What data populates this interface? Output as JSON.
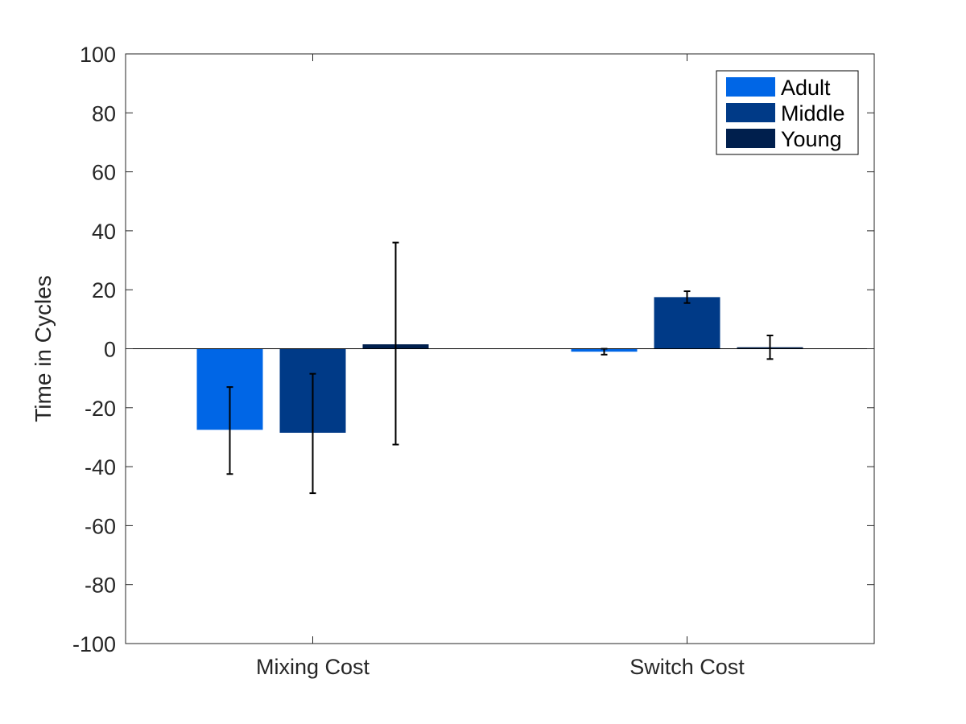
{
  "chart_data": {
    "type": "bar",
    "title": "",
    "xlabel": "",
    "ylabel": "Time in Cycles",
    "categories": [
      "Mixing Cost",
      "Switch Cost"
    ],
    "ylim": [
      -100,
      100
    ],
    "yticks": [
      -100,
      -80,
      -60,
      -40,
      -20,
      0,
      20,
      40,
      60,
      80,
      100
    ],
    "grid": false,
    "legend_position": "top-right",
    "series": [
      {
        "name": "Adult",
        "color": "#0066e6",
        "values": [
          -27.5,
          -1
        ],
        "error_low": [
          -42.5,
          -2
        ],
        "error_high": [
          -13,
          0
        ]
      },
      {
        "name": "Middle",
        "color": "#003a87",
        "values": [
          -28.5,
          17.5
        ],
        "error_low": [
          -49,
          15.5
        ],
        "error_high": [
          -8.5,
          19.5
        ]
      },
      {
        "name": "Young",
        "color": "#001f4d",
        "values": [
          1.5,
          0.5
        ],
        "error_low": [
          -32.5,
          -3.5
        ],
        "error_high": [
          36,
          4.5
        ]
      }
    ]
  }
}
